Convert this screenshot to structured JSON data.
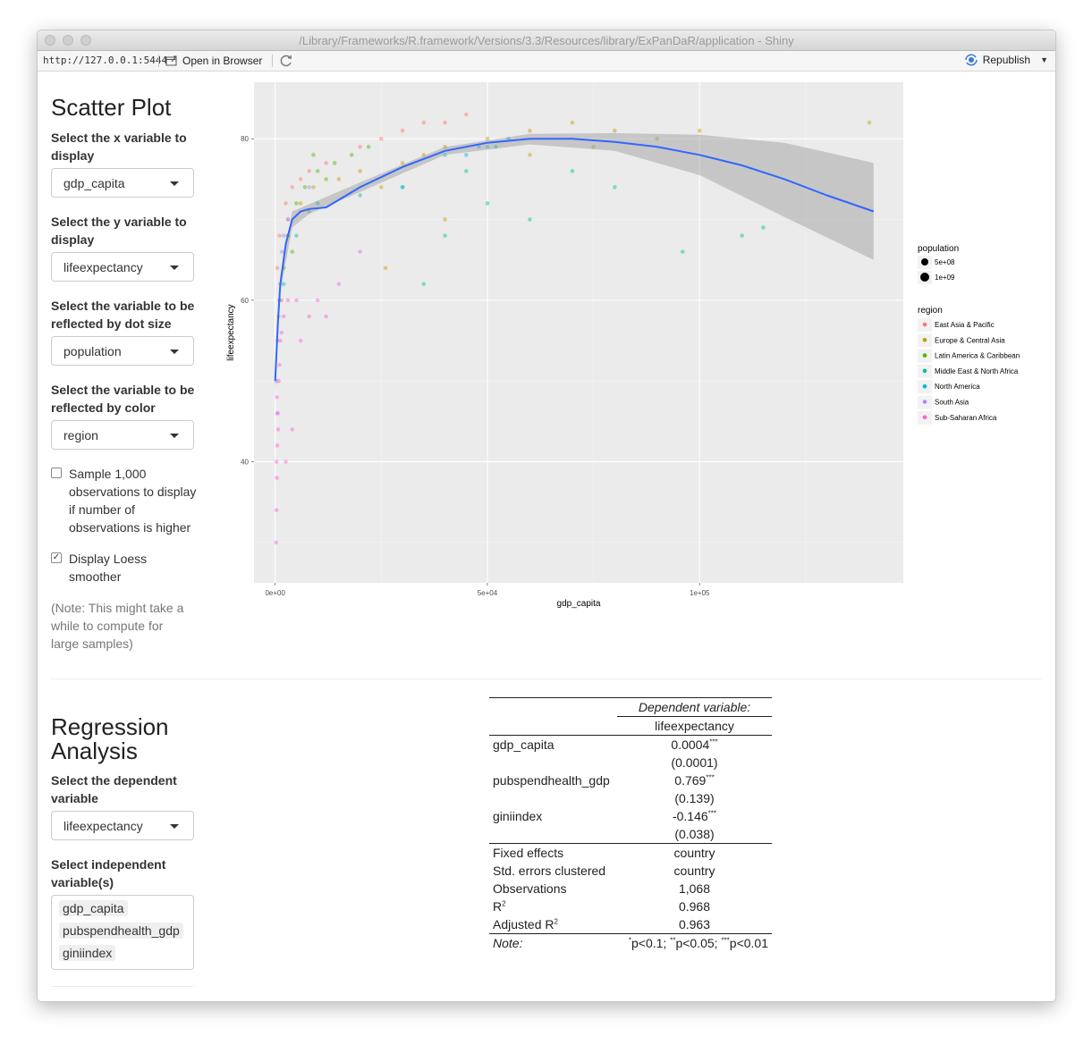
{
  "window": {
    "title": "/Library/Frameworks/R.framework/Versions/3.3/Resources/library/ExPanDaR/application - Shiny"
  },
  "toolbar": {
    "url": "http://127.0.0.1:5444",
    "open_in_browser": "Open in Browser",
    "republish": "Republish"
  },
  "scatter": {
    "title": "Scatter Plot",
    "x_label": "Select the x variable to display",
    "x_value": "gdp_capita",
    "y_label": "Select the y variable to display",
    "y_value": "lifeexpectancy",
    "size_label": "Select the variable to be reflected by dot size",
    "size_value": "population",
    "color_label": "Select the variable to be reflected by color",
    "color_value": "region",
    "sample_label": "Sample 1,000 observations to display if number of observations is higher",
    "sample_checked": false,
    "loess_label": "Display Loess smoother",
    "loess_checked": true,
    "note": "(Note: This might take a while to compute for large samples)"
  },
  "chart_data": {
    "type": "scatter",
    "xlabel": "gdp_capita",
    "ylabel": "lifeexpectancy",
    "xlim": [
      -5000,
      148000
    ],
    "ylim": [
      25,
      87
    ],
    "x_ticks": [
      {
        "value": 0,
        "label": "0e+00"
      },
      {
        "value": 50000,
        "label": "5e+04"
      },
      {
        "value": 100000,
        "label": "1e+05"
      }
    ],
    "y_ticks": [
      {
        "value": 40,
        "label": "40"
      },
      {
        "value": 60,
        "label": "60"
      },
      {
        "value": 80,
        "label": "80"
      }
    ],
    "grid": true,
    "legend_placement": "right",
    "size_legend": {
      "title": "population",
      "entries": [
        "5e+08",
        "1e+09"
      ]
    },
    "color_legend": {
      "title": "region",
      "entries": [
        {
          "name": "East Asia & Pacific",
          "color": "#F8766D"
        },
        {
          "name": "Europe & Central Asia",
          "color": "#C49A00"
        },
        {
          "name": "Latin America & Caribbean",
          "color": "#53B400"
        },
        {
          "name": "Middle East & North Africa",
          "color": "#00C094"
        },
        {
          "name": "North America",
          "color": "#00B6EB"
        },
        {
          "name": "South Asia",
          "color": "#A58AFF"
        },
        {
          "name": "Sub-Saharan Africa",
          "color": "#FB61D7"
        }
      ]
    },
    "series": [
      {
        "name": "East Asia & Pacific",
        "points": [
          [
            1000,
            68
          ],
          [
            2500,
            72
          ],
          [
            4000,
            74
          ],
          [
            6000,
            75
          ],
          [
            8000,
            76
          ],
          [
            12000,
            77
          ],
          [
            20000,
            79
          ],
          [
            30000,
            81
          ],
          [
            40000,
            82
          ],
          [
            45000,
            83
          ],
          [
            1500,
            60
          ],
          [
            3000,
            70
          ],
          [
            25000,
            80
          ],
          [
            35000,
            82
          ],
          [
            500,
            64
          ]
        ]
      },
      {
        "name": "Europe & Central Asia",
        "points": [
          [
            3000,
            68
          ],
          [
            6000,
            72
          ],
          [
            9000,
            74
          ],
          [
            15000,
            75
          ],
          [
            20000,
            76
          ],
          [
            25000,
            74
          ],
          [
            30000,
            77
          ],
          [
            35000,
            78
          ],
          [
            40000,
            79
          ],
          [
            50000,
            80
          ],
          [
            60000,
            81
          ],
          [
            70000,
            82
          ],
          [
            80000,
            81
          ],
          [
            90000,
            80
          ],
          [
            100000,
            81
          ],
          [
            140000,
            82
          ],
          [
            26000,
            64
          ],
          [
            40000,
            70
          ],
          [
            60000,
            78
          ],
          [
            75000,
            79
          ]
        ]
      },
      {
        "name": "Latin America & Caribbean",
        "points": [
          [
            1000,
            60
          ],
          [
            2000,
            64
          ],
          [
            3000,
            68
          ],
          [
            5000,
            72
          ],
          [
            7000,
            74
          ],
          [
            10000,
            76
          ],
          [
            14000,
            77
          ],
          [
            18000,
            78
          ],
          [
            22000,
            79
          ],
          [
            8000,
            71
          ],
          [
            12000,
            75
          ],
          [
            4000,
            66
          ],
          [
            9000,
            78
          ]
        ]
      },
      {
        "name": "Middle East & North Africa",
        "points": [
          [
            2000,
            62
          ],
          [
            5000,
            68
          ],
          [
            10000,
            72
          ],
          [
            20000,
            73
          ],
          [
            30000,
            74
          ],
          [
            40000,
            68
          ],
          [
            50000,
            72
          ],
          [
            60000,
            70
          ],
          [
            70000,
            76
          ],
          [
            80000,
            74
          ],
          [
            96000,
            66
          ],
          [
            110000,
            68
          ],
          [
            115000,
            69
          ],
          [
            35000,
            62
          ],
          [
            45000,
            76
          ]
        ]
      },
      {
        "name": "North America",
        "points": [
          [
            40000,
            78
          ],
          [
            45000,
            78
          ],
          [
            48000,
            79
          ],
          [
            50000,
            79
          ],
          [
            52000,
            79
          ],
          [
            55000,
            80
          ],
          [
            30000,
            74
          ]
        ]
      },
      {
        "name": "South Asia",
        "points": [
          [
            300,
            50
          ],
          [
            500,
            55
          ],
          [
            800,
            58
          ],
          [
            1200,
            62
          ],
          [
            1600,
            66
          ],
          [
            2000,
            68
          ],
          [
            3000,
            70
          ],
          [
            8000,
            74
          ],
          [
            500,
            46
          ],
          [
            1000,
            60
          ]
        ]
      },
      {
        "name": "Sub-Saharan Africa",
        "points": [
          [
            200,
            30
          ],
          [
            300,
            34
          ],
          [
            400,
            38
          ],
          [
            500,
            42
          ],
          [
            600,
            46
          ],
          [
            800,
            50
          ],
          [
            1000,
            52
          ],
          [
            1200,
            55
          ],
          [
            1500,
            56
          ],
          [
            2000,
            58
          ],
          [
            3000,
            60
          ],
          [
            5000,
            60
          ],
          [
            8000,
            58
          ],
          [
            10000,
            60
          ],
          [
            15000,
            62
          ],
          [
            20000,
            66
          ],
          [
            400,
            48
          ],
          [
            700,
            44
          ],
          [
            300,
            40
          ],
          [
            6000,
            55
          ],
          [
            12000,
            58
          ],
          [
            4000,
            44
          ],
          [
            2500,
            40
          ]
        ]
      }
    ],
    "smoother": {
      "name": "Loess",
      "points": [
        [
          0,
          50
        ],
        [
          600,
          57
        ],
        [
          1200,
          62
        ],
        [
          2500,
          67
        ],
        [
          4000,
          70
        ],
        [
          6000,
          71
        ],
        [
          8000,
          71.3
        ],
        [
          12000,
          71.5
        ],
        [
          20000,
          74
        ],
        [
          30000,
          76.5
        ],
        [
          40000,
          78.5
        ],
        [
          50000,
          79.5
        ],
        [
          60000,
          80
        ],
        [
          70000,
          80
        ],
        [
          80000,
          79.6
        ],
        [
          90000,
          79
        ],
        [
          100000,
          78
        ],
        [
          110000,
          76.7
        ],
        [
          120000,
          75
        ],
        [
          130000,
          73
        ],
        [
          141000,
          71
        ]
      ],
      "lower": [
        [
          0,
          48
        ],
        [
          1200,
          61
        ],
        [
          4000,
          69
        ],
        [
          8000,
          70.7
        ],
        [
          20000,
          73.4
        ],
        [
          40000,
          78
        ],
        [
          60000,
          79.3
        ],
        [
          80000,
          78.5
        ],
        [
          100000,
          75.5
        ],
        [
          120000,
          70.3
        ],
        [
          141000,
          65
        ]
      ],
      "upper": [
        [
          0,
          52
        ],
        [
          1200,
          63
        ],
        [
          4000,
          71
        ],
        [
          8000,
          71.9
        ],
        [
          20000,
          74.6
        ],
        [
          40000,
          79
        ],
        [
          60000,
          80.6
        ],
        [
          80000,
          80.7
        ],
        [
          100000,
          80.5
        ],
        [
          120000,
          79.5
        ],
        [
          141000,
          77
        ]
      ]
    }
  },
  "regression": {
    "title": "Regression Analysis",
    "dep_label": "Select the dependent variable",
    "dep_value": "lifeexpectancy",
    "indep_label": "Select independent variable(s)",
    "indep_values": [
      "gdp_capita",
      "pubspendhealth_gdp",
      "giniindex"
    ],
    "table": {
      "dep_header": "Dependent variable:",
      "dep_var": "lifeexpectancy",
      "coefs": [
        {
          "name": "gdp_capita",
          "estimate": "0.0004",
          "stars": "***",
          "se": "(0.0001)"
        },
        {
          "name": "pubspendhealth_gdp",
          "estimate": "0.769",
          "stars": "***",
          "se": "(0.139)"
        },
        {
          "name": "giniindex",
          "estimate": "-0.146",
          "stars": "***",
          "se": "(0.038)"
        }
      ],
      "stats": [
        {
          "label": "Fixed effects",
          "value": "country"
        },
        {
          "label": "Std. errors clustered",
          "value": "country"
        },
        {
          "label": "Observations",
          "value": "1,068"
        },
        {
          "label": "R",
          "sup": "2",
          "value": "0.968"
        },
        {
          "label": "Adjusted R",
          "sup": "2",
          "value": "0.963"
        }
      ],
      "note_label": "Note:",
      "note_parts": [
        {
          "sup": "*",
          "text": "p<0.1; "
        },
        {
          "sup": "**",
          "text": "p<0.05; "
        },
        {
          "sup": "***",
          "text": "p<0.01"
        }
      ]
    }
  }
}
